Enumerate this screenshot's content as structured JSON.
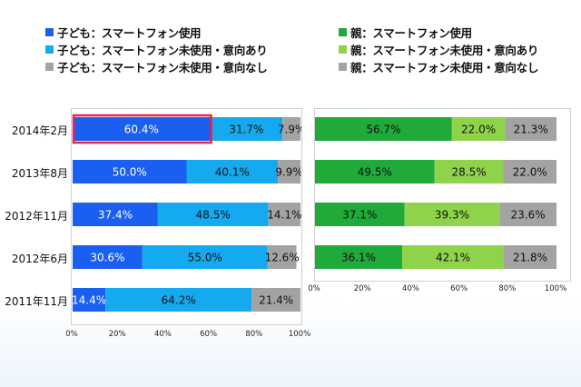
{
  "colors": {
    "blue": "#1a5ff0",
    "light_blue": "#15aaf0",
    "dark_green": "#1faa3a",
    "light_green": "#8fd34a",
    "gray": "#a3a3a3",
    "highlight": "#e8254f"
  },
  "legend_left": [
    {
      "label": "子ども：スマートフォン使用",
      "color": "#1a5ff0"
    },
    {
      "label": "子ども：スマートフォン未使用・意向あり",
      "color": "#15aaf0"
    },
    {
      "label": "子ども：スマートフォン未使用・意向なし",
      "color": "#a3a3a3"
    }
  ],
  "legend_right": [
    {
      "label": "親：スマートフォン使用",
      "color": "#1faa3a"
    },
    {
      "label": "親：スマートフォン未使用・意向あり",
      "color": "#8fd34a"
    },
    {
      "label": "親：スマートフォン未使用・意向なし",
      "color": "#a3a3a3"
    }
  ],
  "chart_data": [
    {
      "type": "bar",
      "orientation": "horizontal",
      "stacked": true,
      "categories": [
        "2014年2月",
        "2013年8月",
        "2012年11月",
        "2012年6月",
        "2011年11月"
      ],
      "series": [
        {
          "name": "子ども：スマートフォン使用",
          "values": [
            60.4,
            50.0,
            37.4,
            30.6,
            14.4
          ]
        },
        {
          "name": "子ども：スマートフォン未使用・意向あり",
          "values": [
            31.7,
            40.1,
            48.5,
            55.0,
            64.2
          ]
        },
        {
          "name": "子ども：スマートフォン未使用・意向なし",
          "values": [
            7.9,
            9.9,
            14.1,
            12.6,
            21.4
          ]
        }
      ],
      "value_labels": [
        [
          "60.4%",
          "31.7%",
          "7.9%"
        ],
        [
          "50.0%",
          "40.1%",
          "9.9%"
        ],
        [
          "37.4%",
          "48.5%",
          "14.1%"
        ],
        [
          "30.6%",
          "55.0%",
          "12.6%"
        ],
        [
          "14.4%",
          "64.2%",
          "21.4%"
        ]
      ],
      "x_ticks": [
        "0%",
        "20%",
        "40%",
        "60%",
        "80%",
        "100%"
      ],
      "xlim": [
        0,
        100
      ],
      "highlighted_category": "2014年2月"
    },
    {
      "type": "bar",
      "orientation": "horizontal",
      "stacked": true,
      "categories": [
        "2014年2月",
        "2013年8月",
        "2012年11月",
        "2012年6月"
      ],
      "series": [
        {
          "name": "親：スマートフォン使用",
          "values": [
            56.7,
            49.5,
            37.1,
            36.1
          ]
        },
        {
          "name": "親：スマートフォン未使用・意向あり",
          "values": [
            22.0,
            28.5,
            39.3,
            42.1
          ]
        },
        {
          "name": "親：スマートフォン未使用・意向なし",
          "values": [
            21.3,
            22.0,
            23.6,
            21.8
          ]
        }
      ],
      "value_labels": [
        [
          "56.7%",
          "22.0%",
          "21.3%"
        ],
        [
          "49.5%",
          "28.5%",
          "22.0%"
        ],
        [
          "37.1%",
          "39.3%",
          "23.6%"
        ],
        [
          "36.1%",
          "42.1%",
          "21.8%"
        ]
      ],
      "x_ticks": [
        "0%",
        "20%",
        "40%",
        "60%",
        "80%",
        "100%"
      ],
      "xlim": [
        0,
        100
      ]
    }
  ]
}
